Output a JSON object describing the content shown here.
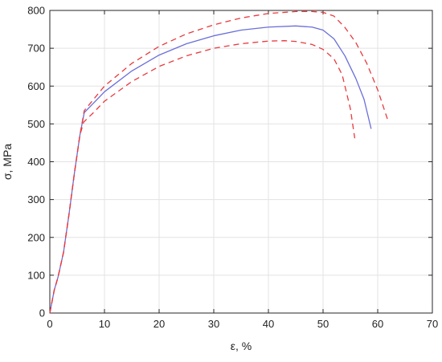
{
  "chart_data": {
    "type": "line",
    "title": "",
    "xlabel": "ε, %",
    "ylabel": "σ, MPa",
    "xlim": [
      0,
      70
    ],
    "ylim": [
      0,
      800
    ],
    "xticks": [
      0,
      10,
      20,
      30,
      40,
      50,
      60,
      70
    ],
    "yticks": [
      0,
      100,
      200,
      300,
      400,
      500,
      600,
      700,
      800
    ],
    "grid": true,
    "legend": "none",
    "series": [
      {
        "style": "solid",
        "color": "#6a6fd8",
        "points": [
          [
            0,
            0
          ],
          [
            0.8,
            60
          ],
          [
            1.5,
            95
          ],
          [
            2.5,
            160
          ],
          [
            3.5,
            260
          ],
          [
            4.5,
            370
          ],
          [
            5.5,
            470
          ],
          [
            6.3,
            530
          ],
          [
            8,
            555
          ],
          [
            10,
            585
          ],
          [
            15,
            640
          ],
          [
            20,
            682
          ],
          [
            25,
            712
          ],
          [
            30,
            733
          ],
          [
            35,
            748
          ],
          [
            40,
            756
          ],
          [
            45,
            759
          ],
          [
            48,
            756
          ],
          [
            50,
            748
          ],
          [
            52,
            725
          ],
          [
            54,
            680
          ],
          [
            56,
            620
          ],
          [
            57.5,
            565
          ],
          [
            58.8,
            487
          ]
        ]
      },
      {
        "style": "dashed",
        "color": "#e8393d",
        "points": [
          [
            0,
            0
          ],
          [
            0.8,
            60
          ],
          [
            1.5,
            95
          ],
          [
            2.5,
            160
          ],
          [
            3.5,
            260
          ],
          [
            4.5,
            370
          ],
          [
            5.5,
            470
          ],
          [
            6.3,
            535
          ],
          [
            8,
            565
          ],
          [
            10,
            600
          ],
          [
            15,
            660
          ],
          [
            20,
            705
          ],
          [
            25,
            738
          ],
          [
            30,
            762
          ],
          [
            35,
            780
          ],
          [
            40,
            792
          ],
          [
            45,
            797
          ],
          [
            48,
            797
          ],
          [
            50,
            795
          ],
          [
            52,
            785
          ],
          [
            54,
            755
          ],
          [
            56,
            715
          ],
          [
            58,
            660
          ],
          [
            60,
            590
          ],
          [
            61.8,
            512
          ]
        ]
      },
      {
        "style": "dashed",
        "color": "#e8393d",
        "points": [
          [
            0,
            0
          ],
          [
            0.8,
            60
          ],
          [
            1.5,
            95
          ],
          [
            2.5,
            160
          ],
          [
            3.5,
            260
          ],
          [
            4.5,
            370
          ],
          [
            5.5,
            470
          ],
          [
            6.2,
            505
          ],
          [
            8,
            530
          ],
          [
            10,
            560
          ],
          [
            15,
            612
          ],
          [
            20,
            652
          ],
          [
            25,
            680
          ],
          [
            30,
            700
          ],
          [
            35,
            712
          ],
          [
            40,
            719
          ],
          [
            43,
            720
          ],
          [
            45,
            718
          ],
          [
            48,
            710
          ],
          [
            50,
            697
          ],
          [
            52,
            672
          ],
          [
            53.5,
            630
          ],
          [
            55,
            540
          ],
          [
            55.8,
            462
          ]
        ]
      }
    ]
  }
}
